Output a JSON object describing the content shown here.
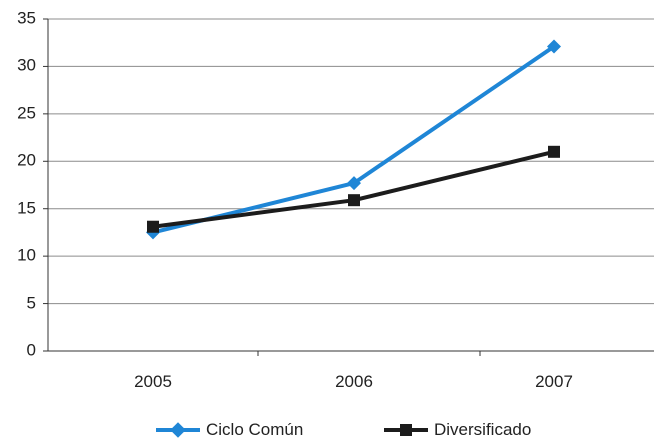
{
  "chart_data": {
    "type": "line",
    "categories": [
      "2005",
      "2006",
      "2007"
    ],
    "series": [
      {
        "name": "Ciclo Común",
        "values": [
          12.5,
          17.7,
          32.1
        ],
        "color": "#1f86d6",
        "marker": "diamond"
      },
      {
        "name": "Diversificado",
        "values": [
          13.1,
          15.9,
          21.0
        ],
        "color": "#1c1c1c",
        "marker": "square"
      }
    ],
    "title": "",
    "xlabel": "",
    "ylabel": "",
    "ylim": [
      0,
      35
    ],
    "yticks": [
      "0",
      "5",
      "10",
      "15",
      "20",
      "25",
      "30",
      "35"
    ],
    "grid": true,
    "legend_position": "bottom"
  }
}
